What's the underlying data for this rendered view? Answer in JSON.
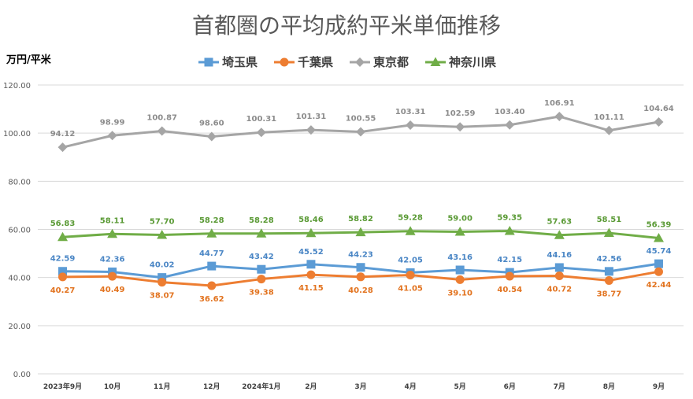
{
  "chart_data": {
    "type": "line",
    "title": "首都圏の平均成約平米単価推移",
    "ylabel": "万円/平米",
    "xlabel": "",
    "ylim": [
      0,
      120
    ],
    "yticks": [
      "0.00",
      "20.00",
      "40.00",
      "60.00",
      "80.00",
      "100.00",
      "120.00"
    ],
    "grid": true,
    "legend_position": "top",
    "categories": [
      "2023年9月",
      "10月",
      "11月",
      "12月",
      "2024年1月",
      "2月",
      "3月",
      "4月",
      "5月",
      "6月",
      "7月",
      "8月",
      "9月"
    ],
    "series": [
      {
        "name": "埼玉県",
        "color": "#5b9bd5",
        "marker": "square",
        "values": [
          42.59,
          42.36,
          40.02,
          44.77,
          43.42,
          45.52,
          44.23,
          42.05,
          43.16,
          42.15,
          44.16,
          42.56,
          45.74
        ],
        "labels": [
          "42.59",
          "42.36",
          "40.02",
          "44.77",
          "43.42",
          "45.52",
          "44.23",
          "42.05",
          "43.16",
          "42.15",
          "44.16",
          "42.56",
          "45.74"
        ]
      },
      {
        "name": "千葉県",
        "color": "#ed7d31",
        "marker": "circle",
        "values": [
          40.27,
          40.49,
          38.07,
          36.62,
          39.38,
          41.15,
          40.28,
          41.05,
          39.1,
          40.54,
          40.72,
          38.77,
          42.44
        ],
        "labels": [
          "40.27",
          "40.49",
          "38.07",
          "36.62",
          "39.38",
          "41.15",
          "40.28",
          "41.05",
          "39.10",
          "40.54",
          "40.72",
          "38.77",
          "42.44"
        ]
      },
      {
        "name": "東京都",
        "color": "#a5a5a5",
        "marker": "diamond",
        "values": [
          94.12,
          98.99,
          100.87,
          98.6,
          100.31,
          101.31,
          100.55,
          103.31,
          102.59,
          103.4,
          106.91,
          101.11,
          104.64
        ],
        "labels": [
          "94.12",
          "98.99",
          "100.87",
          "98.60",
          "100.31",
          "101.31",
          "100.55",
          "103.31",
          "102.59",
          "103.40",
          "106.91",
          "101.11",
          "104.64"
        ]
      },
      {
        "name": "神奈川県",
        "color": "#70ad47",
        "marker": "triangle",
        "values": [
          56.83,
          58.11,
          57.7,
          58.28,
          58.28,
          58.46,
          58.82,
          59.28,
          59.0,
          59.35,
          57.63,
          58.51,
          56.39
        ],
        "labels": [
          "56.83",
          "58.11",
          "57.70",
          "58.28",
          "58.28",
          "58.46",
          "58.82",
          "59.28",
          "59.00",
          "59.35",
          "57.63",
          "58.51",
          "56.39"
        ]
      }
    ]
  }
}
